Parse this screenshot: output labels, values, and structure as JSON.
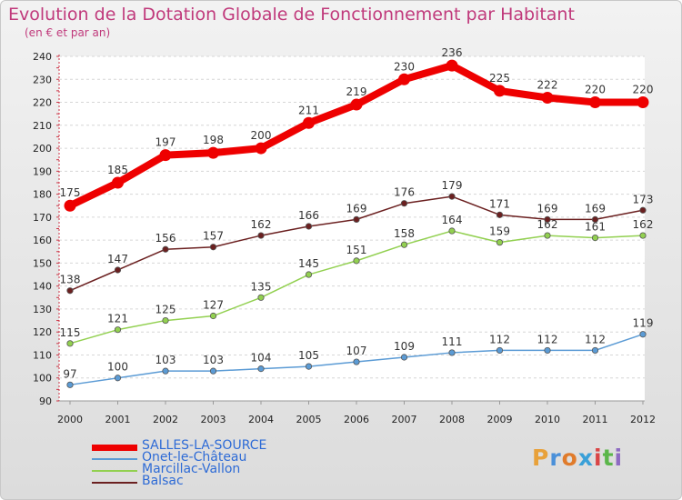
{
  "header": {
    "title": "Evolution de la Dotation Globale de Fonctionnement par Habitant",
    "subtitle": "(en € et par an)"
  },
  "brand": {
    "letters": [
      "P",
      "r",
      "o",
      "x",
      "i",
      "t",
      "i"
    ],
    "colors": [
      "#e8a13a",
      "#4a90d9",
      "#e07b2b",
      "#3aa0d8",
      "#d94545",
      "#5bb64a",
      "#8e6bc2"
    ]
  },
  "chart_data": {
    "type": "line",
    "x": [
      "2000",
      "2001",
      "2002",
      "2003",
      "2004",
      "2005",
      "2006",
      "2007",
      "2008",
      "2009",
      "2010",
      "2011",
      "2012"
    ],
    "ylim": [
      90,
      240
    ],
    "yticks": [
      90,
      100,
      110,
      120,
      130,
      140,
      150,
      160,
      170,
      180,
      190,
      200,
      210,
      220,
      230,
      240
    ],
    "grid": "horizontal dashed",
    "legend_position": "bottom-left",
    "series": [
      {
        "name": "SALLES-LA-SOURCE",
        "color": "#ee0000",
        "values": [
          175,
          185,
          197,
          198,
          200,
          211,
          219,
          230,
          236,
          225,
          222,
          220,
          220
        ]
      },
      {
        "name": "Onet-le-Château",
        "color": "#5b9bd5",
        "values": [
          97,
          100,
          103,
          103,
          104,
          105,
          107,
          109,
          111,
          112,
          112,
          112,
          119
        ]
      },
      {
        "name": "Marcillac-Vallon",
        "color": "#92d050",
        "values": [
          115,
          121,
          125,
          127,
          135,
          145,
          151,
          158,
          164,
          159,
          162,
          161,
          162
        ]
      },
      {
        "name": "Balsac",
        "color": "#6b2020",
        "values": [
          138,
          147,
          156,
          157,
          162,
          166,
          169,
          176,
          179,
          171,
          169,
          169,
          173
        ]
      }
    ]
  }
}
